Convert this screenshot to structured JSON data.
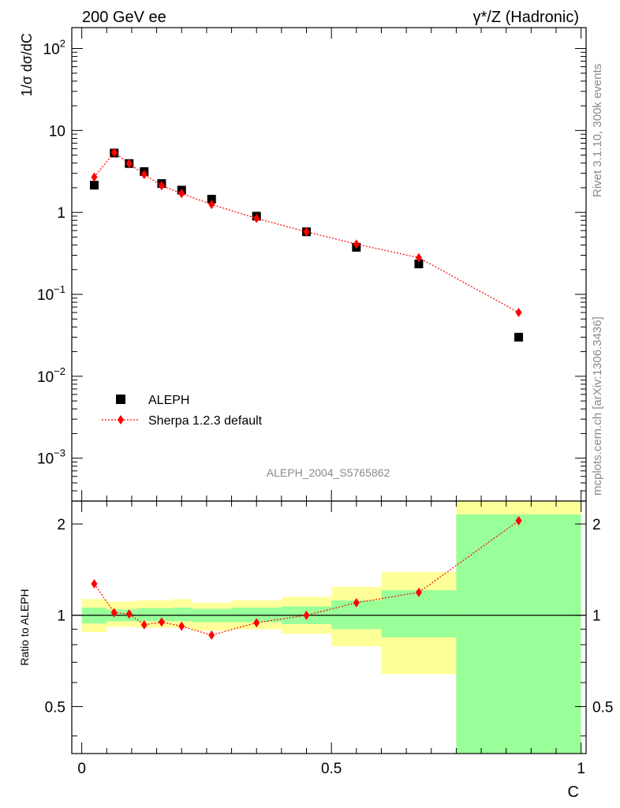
{
  "header": {
    "left_title": "200 GeV ee",
    "right_title": "γ*/Z (Hadronic)"
  },
  "side_labels": {
    "rivet": "Rivet 3.1.10,  300k events",
    "mcplots": "mcplots.cern.ch [arXiv:1306.3436]"
  },
  "watermark": "ALEPH_2004_S5765862",
  "colors": {
    "data": "#000000",
    "mc": "#ff0000",
    "band_inner": "#99ff99",
    "band_outer": "#ffff99"
  },
  "chart_data": [
    {
      "type": "scatter",
      "ylabel": "1/σ  dσ/dC",
      "yscale": "log",
      "xlim": [
        -0.02,
        1.01
      ],
      "ylim": [
        0.0003,
        180
      ],
      "yticks": [
        {
          "v": 0.001,
          "label": "10",
          "exp": "−3"
        },
        {
          "v": 0.01,
          "label": "10",
          "exp": "−2"
        },
        {
          "v": 0.1,
          "label": "10",
          "exp": "−1"
        },
        {
          "v": 1,
          "label": "1",
          "exp": ""
        },
        {
          "v": 10,
          "label": "10",
          "exp": ""
        },
        {
          "v": 100,
          "label": "10",
          "exp": "2"
        }
      ],
      "legend": {
        "position": "bottom-left",
        "entries": [
          "ALEPH",
          "Sherpa 1.2.3 default"
        ]
      },
      "series": [
        {
          "name": "ALEPH",
          "marker": "square",
          "x": [
            0.025,
            0.065,
            0.095,
            0.125,
            0.16,
            0.2,
            0.26,
            0.35,
            0.45,
            0.55,
            0.675,
            0.875
          ],
          "y": [
            2.15,
            5.3,
            3.95,
            3.15,
            2.25,
            1.87,
            1.45,
            0.9,
            0.58,
            0.375,
            0.235,
            0.03
          ]
        },
        {
          "name": "Sherpa 1.2.3 default",
          "marker": "diamond",
          "line": "dotted",
          "x": [
            0.025,
            0.065,
            0.095,
            0.125,
            0.16,
            0.2,
            0.26,
            0.35,
            0.45,
            0.55,
            0.675,
            0.875
          ],
          "y": [
            2.7,
            5.4,
            3.95,
            2.9,
            2.12,
            1.7,
            1.25,
            0.845,
            0.58,
            0.41,
            0.28,
            0.06
          ]
        }
      ]
    },
    {
      "type": "line",
      "xlabel": "C",
      "ylabel": "Ratio to ALEPH",
      "yscale": "log",
      "xlim": [
        -0.02,
        1.01
      ],
      "ylim": [
        0.35,
        2.38
      ],
      "xticks": [
        {
          "v": 0,
          "label": "0"
        },
        {
          "v": 0.5,
          "label": "0.5"
        },
        {
          "v": 1,
          "label": "1"
        }
      ],
      "yticks": [
        {
          "v": 0.5,
          "label": "0.5"
        },
        {
          "v": 1,
          "label": "1"
        },
        {
          "v": 2,
          "label": "2"
        }
      ],
      "reference_line": 1,
      "bands": [
        {
          "x0": 0.0,
          "x1": 0.05,
          "inner": [
            0.94,
            1.06
          ],
          "outer": [
            0.88,
            1.13
          ]
        },
        {
          "x0": 0.05,
          "x1": 0.11,
          "inner": [
            0.955,
            1.045
          ],
          "outer": [
            0.915,
            1.11
          ]
        },
        {
          "x0": 0.11,
          "x1": 0.18,
          "inner": [
            0.955,
            1.055
          ],
          "outer": [
            0.91,
            1.12
          ]
        },
        {
          "x0": 0.18,
          "x1": 0.22,
          "inner": [
            0.955,
            1.06
          ],
          "outer": [
            0.91,
            1.13
          ]
        },
        {
          "x0": 0.22,
          "x1": 0.3,
          "inner": [
            0.95,
            1.05
          ],
          "outer": [
            0.89,
            1.1
          ]
        },
        {
          "x0": 0.3,
          "x1": 0.4,
          "inner": [
            0.95,
            1.06
          ],
          "outer": [
            0.9,
            1.12
          ]
        },
        {
          "x0": 0.4,
          "x1": 0.5,
          "inner": [
            0.935,
            1.07
          ],
          "outer": [
            0.87,
            1.15
          ]
        },
        {
          "x0": 0.5,
          "x1": 0.6,
          "inner": [
            0.9,
            1.12
          ],
          "outer": [
            0.79,
            1.24
          ]
        },
        {
          "x0": 0.6,
          "x1": 0.75,
          "inner": [
            0.845,
            1.21
          ],
          "outer": [
            0.64,
            1.39
          ]
        },
        {
          "x0": 0.75,
          "x1": 1.0,
          "inner": [
            0.35,
            2.15
          ],
          "outer": [
            0.35,
            2.38
          ]
        }
      ],
      "series": [
        {
          "name": "Sherpa 1.2.3 default",
          "marker": "diamond",
          "line": "dotted",
          "x": [
            0.025,
            0.065,
            0.095,
            0.125,
            0.16,
            0.2,
            0.26,
            0.35,
            0.45,
            0.55,
            0.675,
            0.875
          ],
          "y": [
            1.27,
            1.02,
            1.01,
            0.93,
            0.95,
            0.92,
            0.86,
            0.945,
            1.0,
            1.1,
            1.19,
            2.05
          ]
        }
      ]
    }
  ]
}
